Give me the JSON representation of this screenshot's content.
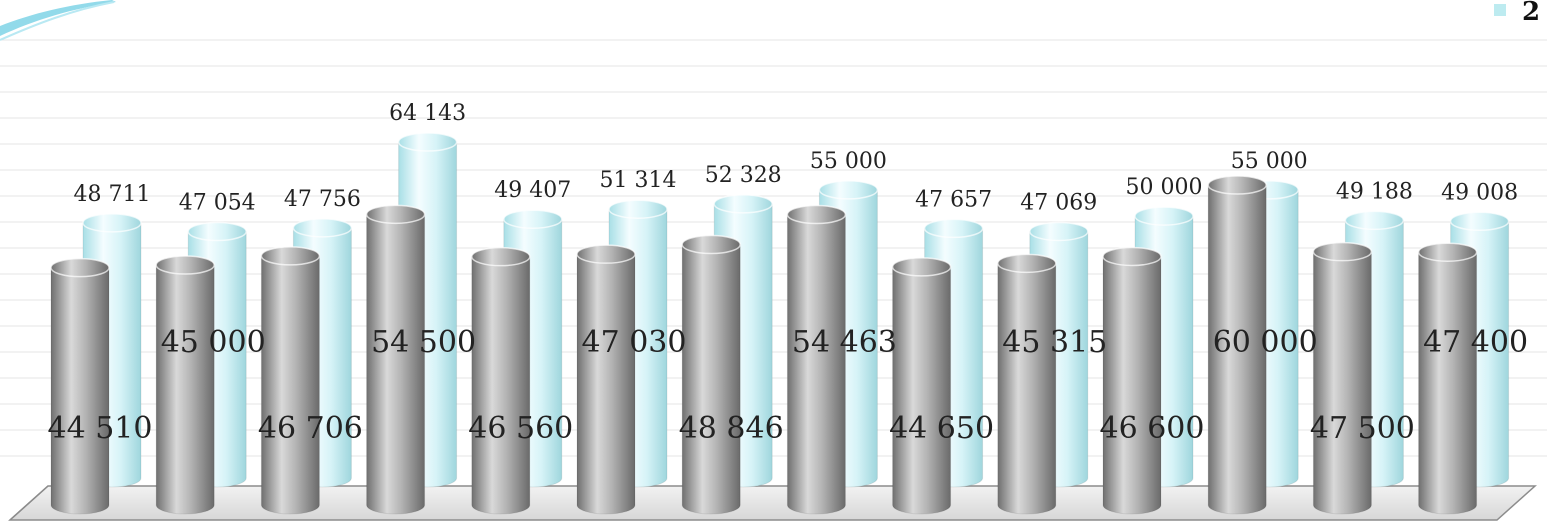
{
  "chart_data": {
    "type": "bar",
    "style": "3d-cylinder",
    "grid": true,
    "legend_position": "top-right",
    "ylim": [
      0,
      70000
    ],
    "series": [
      {
        "color": "#9e9e9e",
        "labels": [
          "44 510",
          "45 000",
          "46 706",
          "54 500",
          "46 560",
          "47 030",
          "48 846",
          "54 463",
          "44 650",
          "45 315",
          "46 600",
          "60 000",
          "47 500",
          "47 400"
        ],
        "values": [
          44510,
          45000,
          46706,
          54500,
          46560,
          47030,
          48846,
          54463,
          44650,
          45315,
          46600,
          60000,
          47500,
          47400
        ]
      },
      {
        "color": "#bdebf0",
        "labels": [
          "48 711",
          "47 054",
          "47 756",
          "64 143",
          "49 407",
          "51 314",
          "52 328",
          "55 000",
          "47 657",
          "47 069",
          "50 000",
          "55 000",
          "49 188",
          "49 008"
        ],
        "values": [
          48711,
          47054,
          47756,
          64143,
          49407,
          51314,
          52328,
          55000,
          47657,
          47069,
          50000,
          55000,
          49188,
          49008
        ]
      }
    ],
    "legend": {
      "visible_text": "2",
      "color": "#bdebf0"
    }
  },
  "colors": {
    "accent_swoosh": "#7fd3e6",
    "grid": "#e6e6e6",
    "floor": "#e9e9e9"
  }
}
